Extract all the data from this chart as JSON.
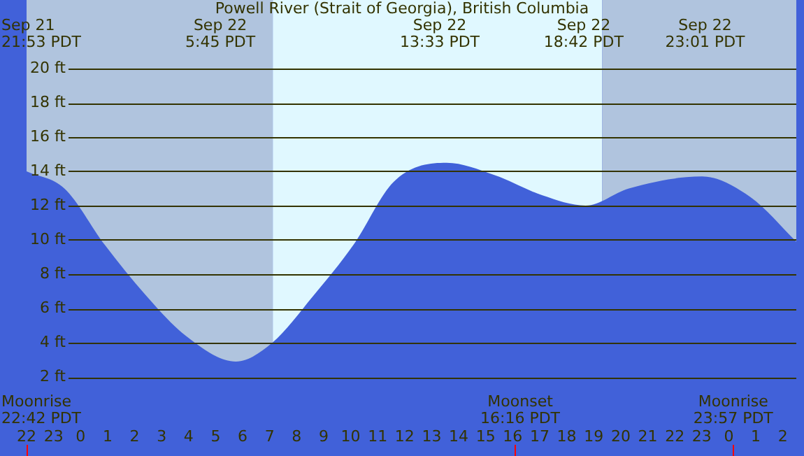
{
  "chart_data": {
    "type": "area",
    "title": "Powell River (Strait of Georgia), British Columbia",
    "x": [
      "--09-21T22:00",
      "--09-21T23:24",
      "--09-22T00:54",
      "--09-22T02:24",
      "--09-22T03:54",
      "--09-22T05:45",
      "--09-22T07:06",
      "--09-22T08:36",
      "--09-22T10:06",
      "--09-22T11:36",
      "--09-22T13:33",
      "--09-22T15:18",
      "--09-22T17:06",
      "--09-22T18:42",
      "--09-22T20:18",
      "--09-22T23:01",
      "--09-23T00:48",
      "--09-23T02:30"
    ],
    "series": [
      {
        "color": "#4161d9",
        "values": [
          14.0,
          13.0,
          9.7,
          6.8,
          4.4,
          2.9,
          4.0,
          6.7,
          9.7,
          13.4,
          14.5,
          13.8,
          12.6,
          12.0,
          13.0,
          13.7,
          12.5,
          9.9
        ]
      }
    ],
    "xlim": [
      "--09-21T22:00",
      "--09-23T02:30"
    ],
    "xticks": [
      {
        "value": "--09-21T22:00",
        "label": "22"
      },
      {
        "value": "--09-21T23:00",
        "label": "23"
      },
      {
        "value": "--09-22T00:00",
        "label": "0"
      },
      {
        "value": "--09-22T01:00",
        "label": "1"
      },
      {
        "value": "--09-22T02:00",
        "label": "2"
      },
      {
        "value": "--09-22T03:00",
        "label": "3"
      },
      {
        "value": "--09-22T04:00",
        "label": "4"
      },
      {
        "value": "--09-22T05:00",
        "label": "5"
      },
      {
        "value": "--09-22T06:00",
        "label": "6"
      },
      {
        "value": "--09-22T07:00",
        "label": "7"
      },
      {
        "value": "--09-22T08:00",
        "label": "8"
      },
      {
        "value": "--09-22T09:00",
        "label": "9"
      },
      {
        "value": "--09-22T10:00",
        "label": "10"
      },
      {
        "value": "--09-22T11:00",
        "label": "11"
      },
      {
        "value": "--09-22T12:00",
        "label": "12"
      },
      {
        "value": "--09-22T13:00",
        "label": "13"
      },
      {
        "value": "--09-22T14:00",
        "label": "14"
      },
      {
        "value": "--09-22T15:00",
        "label": "15"
      },
      {
        "value": "--09-22T16:00",
        "label": "16"
      },
      {
        "value": "--09-22T17:00",
        "label": "17"
      },
      {
        "value": "--09-22T18:00",
        "label": "18"
      },
      {
        "value": "--09-22T19:00",
        "label": "19"
      },
      {
        "value": "--09-22T20:00",
        "label": "20"
      },
      {
        "value": "--09-22T21:00",
        "label": "21"
      },
      {
        "value": "--09-22T22:00",
        "label": "22"
      },
      {
        "value": "--09-22T23:00",
        "label": "23"
      },
      {
        "value": "--09-23T00:00",
        "label": "0"
      },
      {
        "value": "--09-23T01:00",
        "label": "1"
      },
      {
        "value": "--09-23T02:00",
        "label": "2"
      }
    ],
    "ylim": [
      0,
      24
    ],
    "yticks": [
      {
        "value": 2,
        "label": "2 ft"
      },
      {
        "value": 4,
        "label": "4 ft"
      },
      {
        "value": 6,
        "label": "6 ft"
      },
      {
        "value": 8,
        "label": "8 ft"
      },
      {
        "value": 10,
        "label": "10 ft"
      },
      {
        "value": 12,
        "label": "12 ft"
      },
      {
        "value": 14,
        "label": "14 ft"
      },
      {
        "value": 16,
        "label": "16 ft"
      },
      {
        "value": 18,
        "label": "18 ft"
      },
      {
        "value": 20,
        "label": "20 ft"
      }
    ],
    "grid": "y",
    "bands": [
      {
        "axis": "x",
        "from": "--09-21T22:00",
        "to": "--09-22T07:07",
        "color": "#b0c4de"
      },
      {
        "axis": "x",
        "from": "--09-22T07:07",
        "to": "--09-22T19:19",
        "color": "#e0f8ff"
      },
      {
        "axis": "x",
        "from": "--09-22T19:19",
        "to": "--09-23T02:30",
        "color": "#b0c4de"
      }
    ],
    "annotations": [
      "Sep 21\n21:53 PDT",
      "Sep 22\n5:45 PDT",
      "Sep 22\n13:33 PDT",
      "Sep 22\n18:42 PDT",
      "Sep 22\n23:01 PDT",
      "Moonrise\n22:42 PDT",
      "Moonset\n16:16 PDT",
      "Moonrise\n23:57 PDT"
    ]
  }
}
